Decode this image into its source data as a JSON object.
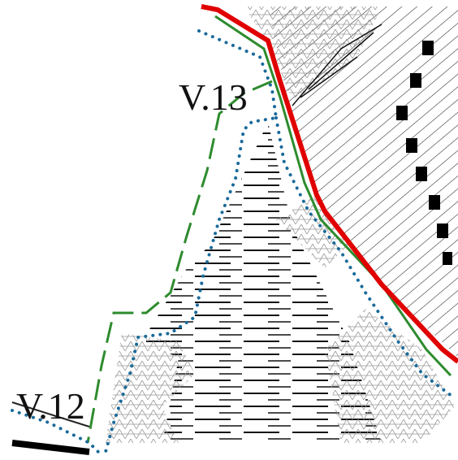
{
  "labels": [
    "V.13",
    "V.12"
  ]
}
